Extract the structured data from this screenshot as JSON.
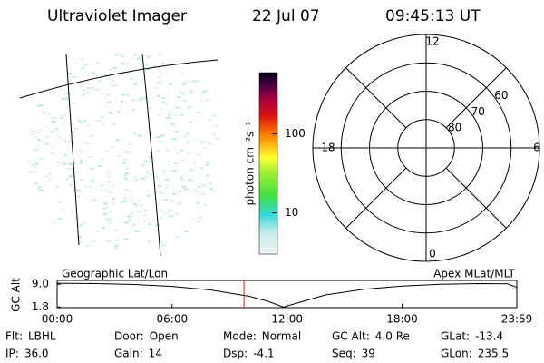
{
  "header": {
    "title": "Ultraviolet Imager",
    "date": "22 Jul 07",
    "time": "09:45:13 UT"
  },
  "colorbar": {
    "label": "photon cm⁻²s⁻¹",
    "scale": "log",
    "lim": [
      3,
      600
    ],
    "ticks": [
      10,
      100
    ]
  },
  "polar": {
    "rlim": [
      90,
      50
    ],
    "lat_ticks": [
      80,
      70,
      60
    ],
    "mlt_ticks": [
      12,
      18,
      6,
      0
    ]
  },
  "chart_data": {
    "type": "line",
    "title_left": "Geographic Lat/Lon",
    "title_right": "Apex MLat/MLT",
    "ylabel": "GC Alt",
    "x": [
      0,
      2,
      4,
      6,
      8,
      10,
      11,
      11.8,
      12.5,
      14,
      16,
      18,
      20,
      22,
      23.5,
      23.983
    ],
    "series": [
      {
        "color": "#000000",
        "values": [
          9.3,
          9.2,
          8.9,
          8.3,
          7.2,
          5.2,
          3.6,
          1.8,
          3.0,
          5.6,
          7.4,
          8.4,
          9.0,
          9.2,
          9.1,
          8.0
        ]
      }
    ],
    "marker_x": 9.75,
    "marker_color": "#d02020",
    "xlim": [
      0,
      23.983
    ],
    "ylim": [
      1.6,
      10.2
    ],
    "xticks": [
      {
        "value": 0,
        "label": "00:00"
      },
      {
        "value": 6,
        "label": "06:00"
      },
      {
        "value": 12,
        "label": "12:00"
      },
      {
        "value": 18,
        "label": "18:00"
      },
      {
        "value": 23.983,
        "label": "23:59"
      }
    ],
    "yticks": [
      {
        "value": 9,
        "label": "9.0"
      },
      1.8
    ]
  },
  "footer": {
    "columns": [
      [
        {
          "label": "Flt:",
          "value": "LBHL"
        },
        {
          "label": "IP:",
          "value": "36.0"
        }
      ],
      [
        {
          "label": "Door:",
          "value": "Open"
        },
        {
          "label": "Gain:",
          "value": "14"
        }
      ],
      [
        {
          "label": "Mode:",
          "value": "Normal"
        },
        {
          "label": "Dsp:",
          "value": "-4.1"
        }
      ],
      [
        {
          "label": "GC Alt:",
          "value": "4.0 Re"
        },
        {
          "label": "Seq:",
          "value": "39"
        }
      ],
      [
        {
          "label": "GLat:",
          "value": "-13.4"
        },
        {
          "label": "GLon:",
          "value": "235.5"
        }
      ]
    ]
  }
}
